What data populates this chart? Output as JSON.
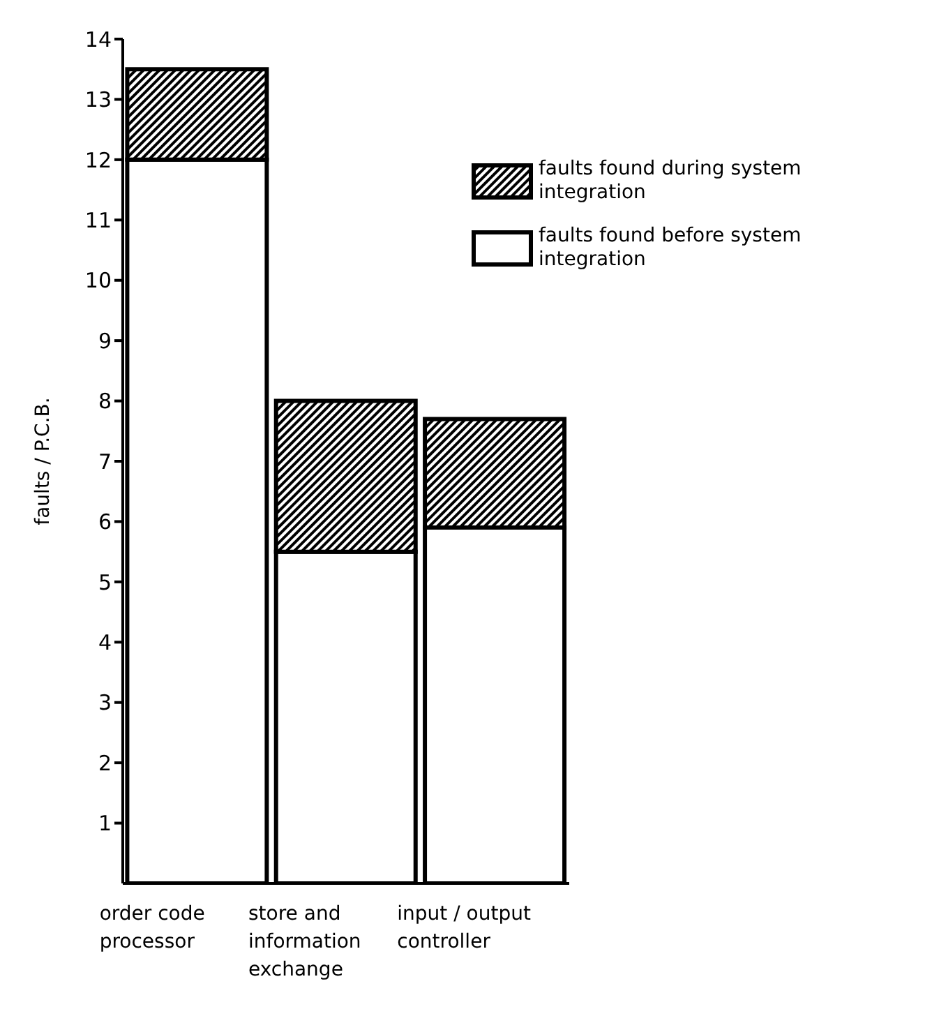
{
  "chart_data": {
    "type": "bar",
    "ylabel": "faults / P.C.B.",
    "categories": [
      "order code processor",
      "store and information exchange",
      "input / output controller"
    ],
    "stacked": true,
    "series": [
      {
        "name": "faults found before system integration",
        "color": "#ffffff",
        "values": [
          12,
          5.5,
          5.9
        ]
      },
      {
        "name": "faults found during system integration",
        "color": "#000000",
        "values": [
          1.5,
          2.5,
          1.8
        ]
      }
    ],
    "ylim": [
      0,
      14
    ],
    "yticks": [
      1,
      2,
      3,
      4,
      5,
      6,
      7,
      8,
      9,
      10,
      11,
      12,
      13,
      14
    ],
    "grid": false,
    "legend": "top right"
  }
}
